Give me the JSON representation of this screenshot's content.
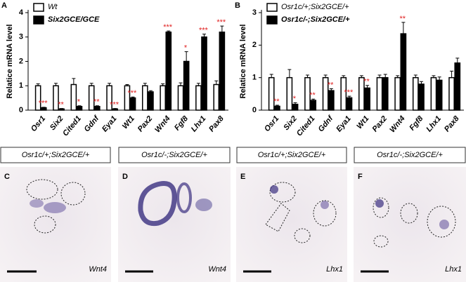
{
  "chart_data": [
    {
      "type": "bar",
      "label": "A",
      "ylabel": "Relatice mRNA level",
      "categories": [
        "Osr1",
        "Six2",
        "Cited1",
        "Gdnf",
        "Eya1",
        "Wt1",
        "Pax2",
        "Wnt4",
        "Fgf8",
        "Lhx1",
        "Pax8"
      ],
      "series": [
        {
          "name": "Wt",
          "color": "#ffffff",
          "values": [
            1.0,
            1.0,
            1.05,
            1.0,
            1.0,
            1.0,
            1.0,
            1.0,
            1.0,
            1.0,
            1.05
          ],
          "errors": [
            0.08,
            0.1,
            0.25,
            0.1,
            0.1,
            0.05,
            0.1,
            0.08,
            0.12,
            0.1,
            0.15
          ]
        },
        {
          "name": "Six2GCE/GCE",
          "color": "#000000",
          "values": [
            0.1,
            0.05,
            0.15,
            0.15,
            0.05,
            0.5,
            0.75,
            3.2,
            2.0,
            3.0,
            3.2
          ],
          "errors": [
            0.02,
            0.02,
            0.03,
            0.03,
            0.02,
            0.04,
            0.05,
            0.05,
            0.4,
            0.12,
            0.25
          ]
        }
      ],
      "significance": [
        "***",
        "**",
        "*",
        "**",
        "***",
        "***",
        null,
        "***",
        "*",
        "***",
        "***"
      ],
      "ylim": [
        0,
        4
      ],
      "yticks": [
        0,
        1,
        2,
        3,
        4
      ]
    },
    {
      "type": "bar",
      "label": "B",
      "ylabel": "Relatice mRNA level",
      "categories": [
        "Osr1",
        "Six2",
        "Cited1",
        "Gdnf",
        "Eya1",
        "Wt1",
        "Pax2",
        "Wnt4",
        "Fgf8",
        "Lhx1",
        "Pax8"
      ],
      "series": [
        {
          "name": "Osr1c/+;Six2GCE/+",
          "color": "#ffffff",
          "values": [
            1.0,
            1.0,
            1.0,
            1.0,
            1.0,
            1.0,
            1.0,
            1.0,
            1.0,
            1.0,
            1.0
          ],
          "errors": [
            0.1,
            0.25,
            0.08,
            0.08,
            0.06,
            0.06,
            0.08,
            0.06,
            0.08,
            0.06,
            0.2
          ]
        },
        {
          "name": "Osr1c/-;Six2GCE/+",
          "color": "#000000",
          "values": [
            0.12,
            0.18,
            0.3,
            0.6,
            0.38,
            0.68,
            1.0,
            2.35,
            0.8,
            0.92,
            1.45
          ],
          "errors": [
            0.03,
            0.05,
            0.04,
            0.06,
            0.05,
            0.08,
            0.1,
            0.35,
            0.08,
            0.1,
            0.15
          ]
        }
      ],
      "significance": [
        "**",
        "*",
        "**",
        "**",
        "***",
        "**",
        null,
        "**",
        null,
        null,
        null
      ],
      "ylim": [
        0,
        3
      ],
      "yticks": [
        0,
        1,
        2,
        3
      ]
    }
  ],
  "panels": [
    {
      "letter": "C",
      "genotype": "Osr1c/+;Six2GCE/+",
      "gene": "Wnt4"
    },
    {
      "letter": "D",
      "genotype": "Osr1c/-;Six2GCE/+",
      "gene": "Wnt4"
    },
    {
      "letter": "E",
      "genotype": "Osr1c/+;Six2GCE/+",
      "gene": "Lhx1"
    },
    {
      "letter": "F",
      "genotype": "Osr1c/-;Six2GCE/+",
      "gene": "Lhx1"
    }
  ]
}
